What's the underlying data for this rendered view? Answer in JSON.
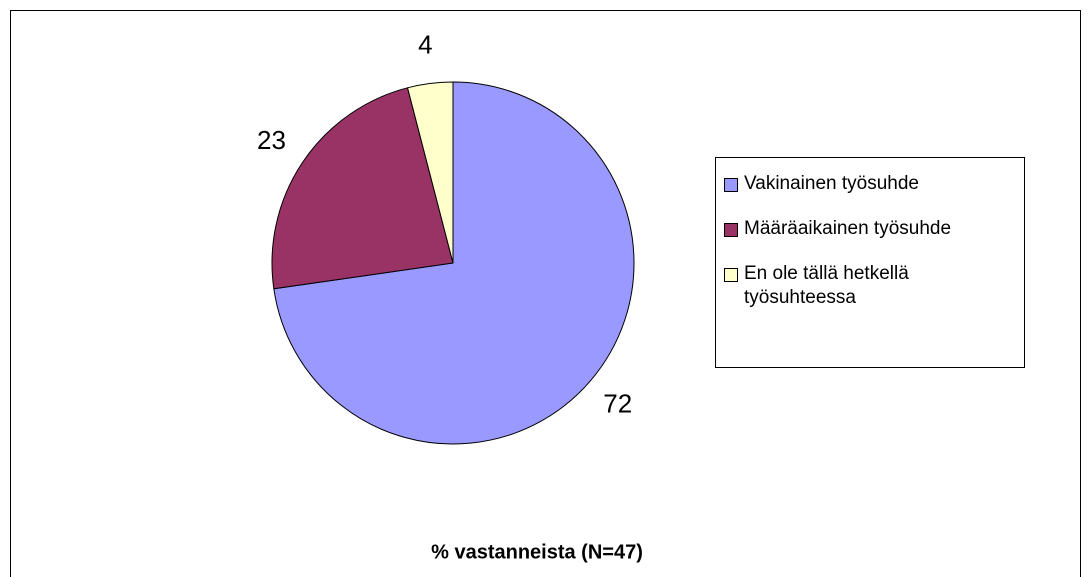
{
  "chart_data": {
    "type": "pie",
    "title": "% vastanneista (N=47)",
    "categories": [
      "Vakinainen työsuhde",
      "Määräaikainen työsuhde",
      "En ole tällä hetkellä työsuhteessa"
    ],
    "values": [
      72,
      23,
      4
    ],
    "colors": [
      "#9999ff",
      "#993366",
      "#ffffcc"
    ],
    "legend": "right"
  }
}
